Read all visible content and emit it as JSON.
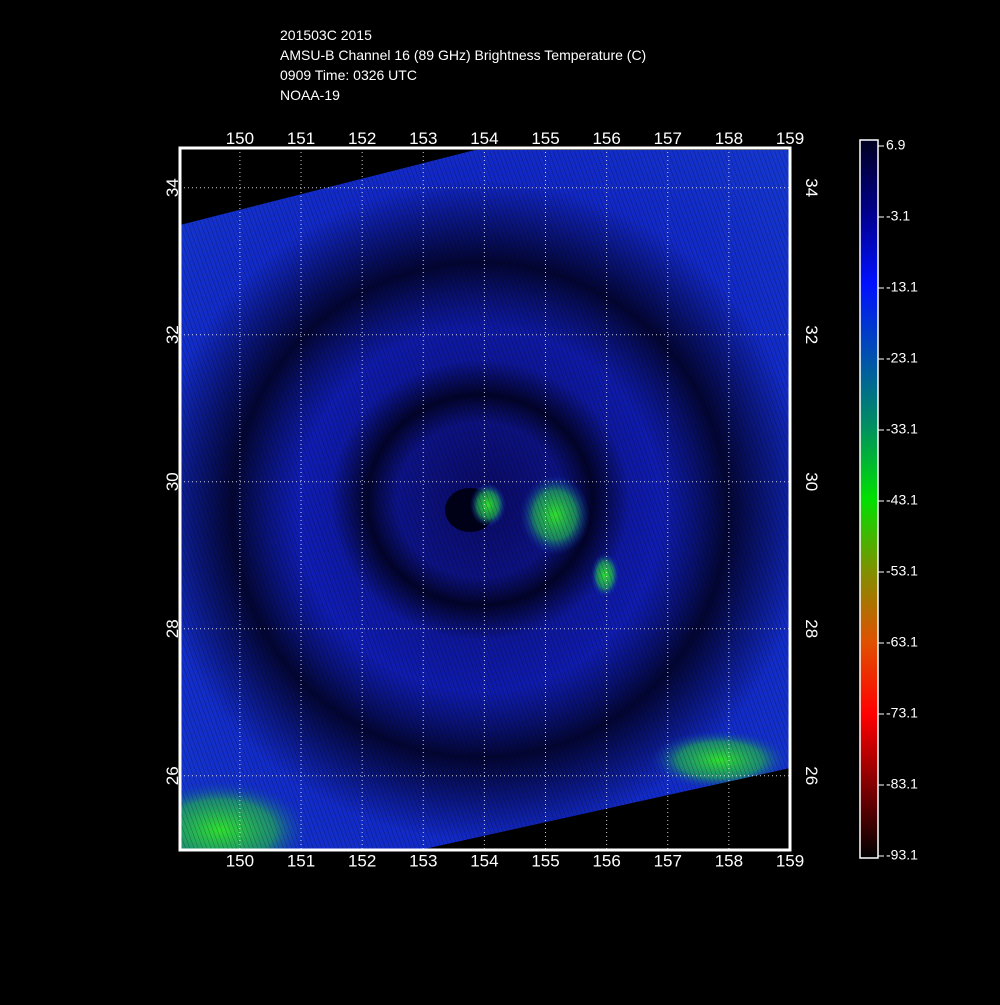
{
  "map": {
    "title_lines": [
      "201503C 2015",
      "AMSU-B Channel 16 (89 GHz) Brightness Temperature (C)",
      "0909 Time: 0326 UTC",
      "NOAA-19"
    ],
    "lon_range": [
      149.02,
      159
    ],
    "lat_range": [
      24.99,
      34.54
    ],
    "lon_ticks": [
      150,
      151,
      152,
      153,
      154,
      155,
      156,
      157,
      158,
      159
    ],
    "lat_ticks": [
      34,
      32,
      30,
      28,
      26
    ],
    "colorbar": {
      "range": [
        6.9,
        -93.1
      ],
      "ticks": [
        6.9,
        -3.1,
        -13.1,
        -23.1,
        -33.1,
        -43.1,
        -53.1,
        -63.1,
        -73.1,
        -83.1,
        -93.1
      ]
    }
  }
}
